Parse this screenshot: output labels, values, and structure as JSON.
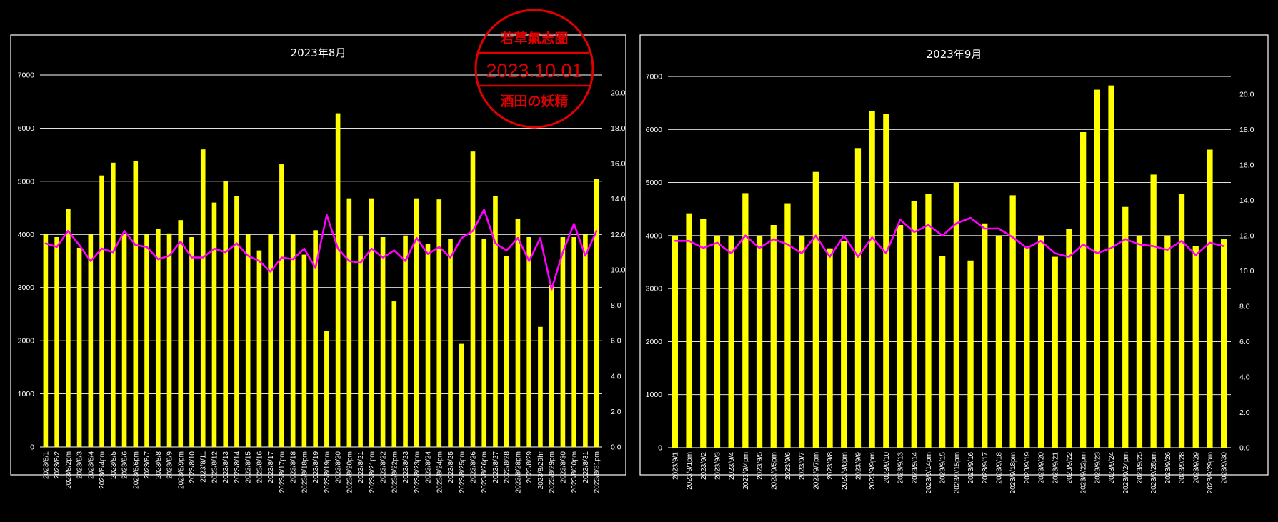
{
  "colors": {
    "background": "#000000",
    "bar": "#ffff00",
    "line": "#ff00ff",
    "grid": "#ffffff",
    "stamp": "#e00000"
  },
  "stamp": {
    "top_text": "若草氣志圏",
    "date": "2023.10.01",
    "bottom_text": "酒田の妖精"
  },
  "chart_data": [
    {
      "type": "bar",
      "title": "2023年8月",
      "ylim": [
        0,
        7000
      ],
      "y2lim": [
        0,
        21
      ],
      "yticks": [
        "0",
        "1000",
        "2000",
        "3000",
        "4000",
        "5000",
        "6000",
        "7000"
      ],
      "y2ticks": [
        "0.0",
        "2.0",
        "4.0",
        "6.0",
        "8.0",
        "10.0",
        "12.0",
        "14.0",
        "16.0",
        "18.0",
        "20.0"
      ],
      "grid": true,
      "categories": [
        "2023/8/1",
        "2023/8/2",
        "2023/8/2pm",
        "2023/8/3",
        "2023/8/4",
        "2023/8/4pm",
        "2023/8/5",
        "2023/8/6",
        "2023/8/6pm",
        "2023/8/7",
        "2023/8/8",
        "2023/8/9",
        "2023/8/9pm",
        "2023/8/10",
        "2023/8/11",
        "2023/8/12",
        "2023/8/13",
        "2023/8/14",
        "2023/8/15",
        "2023/8/16",
        "2023/8/17",
        "2023/8/17pm",
        "2023/8/18",
        "2023/8/18pm",
        "2023/8/19",
        "2023/8/19pm",
        "2023/8/20",
        "2023/8/20pm",
        "2023/8/21",
        "2023/8/21pm",
        "2023/8/22",
        "2023/8/22pm",
        "2023/8/23",
        "2023/8/23pm",
        "2023/8/24",
        "2023/8/24pm",
        "2023/8/25",
        "2023/8/25pm",
        "2023/8/26",
        "2023/8/26pm",
        "2023/8/27",
        "2023/8/28",
        "2023/8/28pm",
        "2023/8/29",
        "2023/8/29hr",
        "2023/8/29pm",
        "2023/8/30",
        "2023/8/30pm",
        "2023/8/31",
        "2023/8/31pm"
      ],
      "series": [
        {
          "type": "bar",
          "axis": "left",
          "values": [
            4000,
            3950,
            4480,
            3750,
            4000,
            5110,
            5350,
            4000,
            5380,
            4000,
            4100,
            4020,
            4270,
            3950,
            5600,
            4600,
            5000,
            4720,
            4000,
            3700,
            4000,
            5320,
            4000,
            3620,
            4080,
            2180,
            6280,
            4680,
            3980,
            4680,
            3950,
            2740,
            3980,
            4680,
            3820,
            4660,
            3920,
            1940,
            5560,
            3920,
            4720,
            3600,
            4300,
            3950,
            2260,
            3050,
            3950,
            3950,
            4000,
            5040
          ]
        },
        {
          "type": "line",
          "axis": "right",
          "values": [
            11.5,
            11.3,
            12.2,
            11.4,
            10.5,
            11.2,
            11.0,
            12.2,
            11.4,
            11.3,
            10.6,
            10.8,
            11.6,
            10.7,
            10.7,
            11.2,
            11.0,
            11.5,
            10.8,
            10.5,
            9.9,
            10.7,
            10.6,
            11.2,
            10.1,
            13.1,
            11.2,
            10.5,
            10.4,
            11.2,
            10.7,
            11.1,
            10.5,
            11.8,
            10.9,
            11.3,
            10.7,
            11.8,
            12.2,
            13.4,
            11.5,
            11.1,
            11.8,
            10.5,
            11.8,
            8.9,
            11.0,
            12.6,
            10.8,
            12.2
          ]
        }
      ]
    },
    {
      "type": "bar",
      "title": "2023年9月",
      "ylim": [
        0,
        7000
      ],
      "y2lim": [
        0,
        21
      ],
      "yticks": [
        "0",
        "1000",
        "2000",
        "3000",
        "4000",
        "5000",
        "6000",
        "7000"
      ],
      "y2ticks": [
        "0.0",
        "2.0",
        "4.0",
        "6.0",
        "8.0",
        "10.0",
        "12.0",
        "14.0",
        "16.0",
        "18.0",
        "20.0"
      ],
      "grid": true,
      "categories": [
        "2023/9/1",
        "2023/9/1pm",
        "2023/9/2",
        "2023/9/3",
        "2023/9/4",
        "2023/9/4pm",
        "2023/9/5",
        "2023/9/5pm",
        "2023/9/6",
        "2023/9/7",
        "2023/9/7pm",
        "2023/9/8",
        "2023/9/8pm",
        "2023/9/9",
        "2023/9/9pm",
        "2023/9/10",
        "2023/9/13",
        "2023/9/14",
        "2023/9/14pm",
        "2023/9/15",
        "2023/9/15pm",
        "2023/9/16",
        "2023/9/17",
        "2023/9/18",
        "2023/9/18pm",
        "2023/9/19",
        "2023/9/20",
        "2023/9/21",
        "2023/9/22",
        "2023/9/22pm",
        "2023/9/23",
        "2023/9/24",
        "2023/9/24pm",
        "2023/9/25",
        "2023/9/25pm",
        "2023/9/26",
        "2023/9/28",
        "2023/9/29",
        "2023/9/29pm",
        "2023/9/30"
      ],
      "series": [
        {
          "type": "bar",
          "axis": "left",
          "values": [
            4000,
            4420,
            4310,
            4000,
            4000,
            4800,
            4000,
            4200,
            4610,
            4000,
            5200,
            3760,
            3900,
            5650,
            6350,
            6290,
            4200,
            4650,
            4780,
            3620,
            5000,
            3530,
            4230,
            4000,
            4760,
            3800,
            4000,
            3600,
            4130,
            5950,
            6750,
            6830,
            4540,
            4000,
            5150,
            4000,
            4780,
            3800,
            5620,
            3930
          ]
        },
        {
          "type": "line",
          "axis": "right",
          "values": [
            11.7,
            11.7,
            11.3,
            11.6,
            11.0,
            12.0,
            11.3,
            11.8,
            11.5,
            11.0,
            12.0,
            10.8,
            12.0,
            10.8,
            11.9,
            11.0,
            12.9,
            12.2,
            12.6,
            12.0,
            12.7,
            13.0,
            12.4,
            12.4,
            11.9,
            11.3,
            11.7,
            11.0,
            10.8,
            11.5,
            11.0,
            11.3,
            11.8,
            11.5,
            11.4,
            11.2,
            11.7,
            10.9,
            11.6,
            11.4
          ]
        }
      ]
    }
  ]
}
